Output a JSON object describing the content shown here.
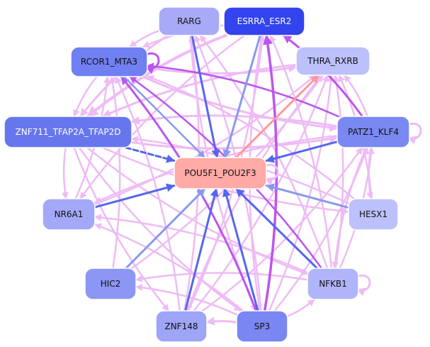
{
  "colors": {
    "pink_edge": "#eebbf5",
    "purple_edge": "#bb55ee",
    "blue_edge": "#5566ee",
    "light_blue_edge": "#8899ee",
    "red_edge": "#ff9999",
    "node_border": "#ffffff"
  },
  "nodes": [
    {
      "id": "RARG",
      "label": "RARG",
      "fill": "#a8aaf8",
      "text": "#111111"
    },
    {
      "id": "ESRRA_ESR2",
      "label": "ESRRA_ESR2",
      "fill": "#3344ee",
      "text": "#ffffff"
    },
    {
      "id": "RCOR1_MTA3",
      "label": "RCOR1_MTA3",
      "fill": "#7080f2",
      "text": "#111111"
    },
    {
      "id": "THRA_RXRB",
      "label": "THRA_RXRB",
      "fill": "#bcc0fb",
      "text": "#111111"
    },
    {
      "id": "ZNF711",
      "label": "ZNF711_TFAP2A_TFAP2D",
      "fill": "#6677ee",
      "text": "#ffffff"
    },
    {
      "id": "PATZ1_KLF4",
      "label": "PATZ1_KLF4",
      "fill": "#7a88f2",
      "text": "#111111"
    },
    {
      "id": "POU5F1",
      "label": "POU5F1_POU2F3",
      "fill": "#ffaaa6",
      "text": "#111111"
    },
    {
      "id": "NR6A1",
      "label": "NR6A1",
      "fill": "#a4a8f8",
      "text": "#111111"
    },
    {
      "id": "HESX1",
      "label": "HESX1",
      "fill": "#bcc0fb",
      "text": "#111111"
    },
    {
      "id": "HIC2",
      "label": "HIC2",
      "fill": "#8c96f4",
      "text": "#111111"
    },
    {
      "id": "NFKB1",
      "label": "NFKB1",
      "fill": "#b0b4fa",
      "text": "#111111"
    },
    {
      "id": "ZNF148",
      "label": "ZNF148",
      "fill": "#9ea4f6",
      "text": "#111111"
    },
    {
      "id": "SP3",
      "label": "SP3",
      "fill": "#7a86f2",
      "text": "#111111"
    }
  ],
  "edges": [
    {
      "from": "RARG",
      "to": "POU5F1",
      "color": "blue_edge",
      "w": 3
    },
    {
      "from": "ESRRA_ESR2",
      "to": "POU5F1",
      "color": "light_blue_edge",
      "w": 3
    },
    {
      "from": "RCOR1_MTA3",
      "to": "POU5F1",
      "color": "light_blue_edge",
      "w": 2.5
    },
    {
      "from": "ZNF711",
      "to": "POU5F1",
      "color": "blue_edge",
      "w": 3,
      "dashed": true
    },
    {
      "from": "PATZ1_KLF4",
      "to": "POU5F1",
      "color": "blue_edge",
      "w": 3
    },
    {
      "from": "NR6A1",
      "to": "POU5F1",
      "color": "blue_edge",
      "w": 3
    },
    {
      "from": "HESX1",
      "to": "POU5F1",
      "color": "light_blue_edge",
      "w": 3
    },
    {
      "from": "HIC2",
      "to": "POU5F1",
      "color": "light_blue_edge",
      "w": 3
    },
    {
      "from": "ZNF148",
      "to": "POU5F1",
      "color": "blue_edge",
      "w": 3
    },
    {
      "from": "SP3",
      "to": "POU5F1",
      "color": "blue_edge",
      "w": 3
    },
    {
      "from": "NFKB1",
      "to": "POU5F1",
      "color": "blue_edge",
      "w": 3
    },
    {
      "from": "POU5F1",
      "to": "THRA_RXRB",
      "color": "red_edge",
      "w": 3
    },
    {
      "from": "SP3",
      "to": "ESRRA_ESR2",
      "color": "purple_edge",
      "w": 3.5
    },
    {
      "from": "PATZ1_KLF4",
      "to": "ESRRA_ESR2",
      "color": "purple_edge",
      "w": 3
    },
    {
      "from": "SP3",
      "to": "RCOR1_MTA3",
      "color": "purple_edge",
      "w": 3
    },
    {
      "from": "NFKB1",
      "to": "RCOR1_MTA3",
      "color": "purple_edge",
      "w": 2.5
    },
    {
      "from": "PATZ1_KLF4",
      "to": "RCOR1_MTA3",
      "color": "purple_edge",
      "w": 2.5
    },
    {
      "from": "ZNF711",
      "to": "PATZ1_KLF4",
      "color": "pink_edge",
      "w": 3
    },
    {
      "from": "PATZ1_KLF4",
      "to": "ZNF711",
      "color": "pink_edge",
      "w": 3
    },
    {
      "from": "ESRRA_ESR2",
      "to": "ZNF711",
      "color": "pink_edge",
      "w": 4
    },
    {
      "from": "RARG",
      "to": "ZNF711",
      "color": "pink_edge",
      "w": 3
    },
    {
      "from": "THRA_RXRB",
      "to": "ZNF711",
      "color": "pink_edge",
      "w": 3
    },
    {
      "from": "RCOR1_MTA3",
      "to": "THRA_RXRB",
      "color": "pink_edge",
      "w": 3
    },
    {
      "from": "RCOR1_MTA3",
      "to": "PATZ1_KLF4",
      "color": "pink_edge",
      "w": 3
    },
    {
      "from": "RARG",
      "to": "RCOR1_MTA3",
      "color": "pink_edge",
      "w": 2.5
    },
    {
      "from": "ESRRA_ESR2",
      "to": "RCOR1_MTA3",
      "color": "pink_edge",
      "w": 2.5
    },
    {
      "from": "PATZ1_KLF4",
      "to": "THRA_RXRB",
      "color": "pink_edge",
      "w": 2.5
    },
    {
      "from": "ZNF711",
      "to": "NR6A1",
      "color": "pink_edge",
      "w": 2.5
    },
    {
      "from": "ZNF711",
      "to": "HESX1",
      "color": "pink_edge",
      "w": 2.5
    },
    {
      "from": "ZNF711",
      "to": "NFKB1",
      "color": "pink_edge",
      "w": 2.5
    },
    {
      "from": "ZNF711",
      "to": "ZNF148",
      "color": "pink_edge",
      "w": 2.5
    },
    {
      "from": "ZNF711",
      "to": "SP3",
      "color": "pink_edge",
      "w": 2.5
    },
    {
      "from": "SP3",
      "to": "ZNF148",
      "color": "pink_edge",
      "w": 3
    },
    {
      "from": "SP3",
      "to": "NFKB1",
      "color": "pink_edge",
      "w": 2.5
    },
    {
      "from": "SP3",
      "to": "HIC2",
      "color": "pink_edge",
      "w": 2.5
    },
    {
      "from": "SP3",
      "to": "NR6A1",
      "color": "pink_edge",
      "w": 2.5
    },
    {
      "from": "SP3",
      "to": "THRA_RXRB",
      "color": "pink_edge",
      "w": 2.5
    },
    {
      "from": "SP3",
      "to": "RARG",
      "color": "pink_edge",
      "w": 2.5
    },
    {
      "from": "SP3",
      "to": "PATZ1_KLF4",
      "color": "pink_edge",
      "w": 2.5
    },
    {
      "from": "NFKB1",
      "to": "ESRRA_ESR2",
      "color": "pink_edge",
      "w": 2.5
    },
    {
      "from": "NFKB1",
      "to": "THRA_RXRB",
      "color": "pink_edge",
      "w": 2.5
    },
    {
      "from": "NFKB1",
      "to": "HIC2",
      "color": "pink_edge",
      "w": 2.5
    },
    {
      "from": "NFKB1",
      "to": "NR6A1",
      "color": "pink_edge",
      "w": 2.5
    },
    {
      "from": "NFKB1",
      "to": "RARG",
      "color": "pink_edge",
      "w": 2.5
    },
    {
      "from": "NFKB1",
      "to": "PATZ1_KLF4",
      "color": "pink_edge",
      "w": 2.5
    },
    {
      "from": "ZNF148",
      "to": "ESRRA_ESR2",
      "color": "pink_edge",
      "w": 2.5
    },
    {
      "from": "ZNF148",
      "to": "THRA_RXRB",
      "color": "pink_edge",
      "w": 2.5
    },
    {
      "from": "ZNF148",
      "to": "RARG",
      "color": "pink_edge",
      "w": 2.5
    },
    {
      "from": "ZNF148",
      "to": "RCOR1_MTA3",
      "color": "pink_edge",
      "w": 2.5
    },
    {
      "from": "ZNF148",
      "to": "PATZ1_KLF4",
      "color": "pink_edge",
      "w": 2.5
    },
    {
      "from": "HIC2",
      "to": "RCOR1_MTA3",
      "color": "pink_edge",
      "w": 2.5
    },
    {
      "from": "HIC2",
      "to": "THRA_RXRB",
      "color": "pink_edge",
      "w": 2.5
    },
    {
      "from": "NR6A1",
      "to": "RCOR1_MTA3",
      "color": "pink_edge",
      "w": 2.5
    },
    {
      "from": "NR6A1",
      "to": "THRA_RXRB",
      "color": "pink_edge",
      "w": 2.5
    },
    {
      "from": "HESX1",
      "to": "THRA_RXRB",
      "color": "pink_edge",
      "w": 2.5
    },
    {
      "from": "HESX1",
      "to": "ZNF711",
      "color": "pink_edge",
      "w": 2.5
    },
    {
      "from": "HESX1",
      "to": "RCOR1_MTA3",
      "color": "pink_edge",
      "w": 2.5
    },
    {
      "from": "PATZ1_KLF4",
      "to": "NR6A1",
      "color": "pink_edge",
      "w": 2.5
    },
    {
      "from": "PATZ1_KLF4",
      "to": "HESX1",
      "color": "pink_edge",
      "w": 2.5
    },
    {
      "from": "RCOR1_MTA3",
      "to": "ZNF711",
      "color": "pink_edge",
      "w": 2.5
    },
    {
      "from": "ESRRA_ESR2",
      "to": "NR6A1",
      "color": "pink_edge",
      "w": 2.5
    },
    {
      "from": "THRA_RXRB",
      "to": "ZNF148",
      "color": "pink_edge",
      "w": 2.5
    },
    {
      "from": "PATZ1_KLF4",
      "to": "NFKB1",
      "color": "pink_edge",
      "w": 2.5
    },
    {
      "from": "RARG",
      "to": "SP3",
      "color": "pink_edge",
      "w": 2.5
    },
    {
      "from": "ESRRA_ESR2",
      "to": "SP3",
      "color": "pink_edge",
      "w": 2.5
    }
  ],
  "self_loops": [
    "RCOR1_MTA3",
    "PATZ1_KLF4",
    "POU5F1",
    "NFKB1"
  ]
}
